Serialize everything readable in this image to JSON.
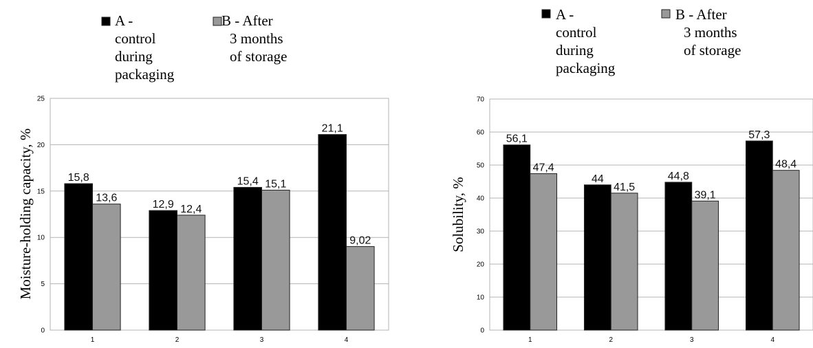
{
  "colors": {
    "series_a": "#000000",
    "series_b": "#999999",
    "grid": "#b3b3b3",
    "frame": "#b3b3b3"
  },
  "chart_data": [
    {
      "type": "bar",
      "categories": [
        "1",
        "2",
        "3",
        "4"
      ],
      "series": [
        {
          "name": "A - control during packaging",
          "legend_lines": [
            "A -",
            "control",
            "during",
            "packaging"
          ],
          "values": [
            15.8,
            12.9,
            15.4,
            21.1
          ],
          "labels": [
            "15,8",
            "12,9",
            "15,4",
            "21,1"
          ]
        },
        {
          "name": "B - After 3 months of storage",
          "legend_lines": [
            "B - After",
            "3 months",
            "of storage"
          ],
          "values": [
            13.6,
            12.4,
            15.1,
            9.02
          ],
          "labels": [
            "13,6",
            "12,4",
            "15,1",
            "9,02"
          ]
        }
      ],
      "xlabel": "",
      "ylabel": "Moisture-holding capacity, %",
      "ylim": [
        0,
        25
      ],
      "yticks": [
        0,
        5,
        10,
        15,
        20,
        25
      ],
      "grid": true,
      "legend": "top"
    },
    {
      "type": "bar",
      "categories": [
        "1",
        "2",
        "3",
        "4"
      ],
      "series": [
        {
          "name": "A - control during packaging",
          "legend_lines": [
            "A -",
            "control",
            "during",
            "packaging"
          ],
          "values": [
            56.1,
            44,
            44.8,
            57.3
          ],
          "labels": [
            "56,1",
            "44",
            "44,8",
            "57,3"
          ]
        },
        {
          "name": "B - After 3 months of storage",
          "legend_lines": [
            "B - After",
            "3 months",
            "of storage"
          ],
          "values": [
            47.4,
            41.5,
            39.1,
            48.4
          ],
          "labels": [
            "47,4",
            "41,5",
            "39,1",
            "48,4"
          ]
        }
      ],
      "xlabel": "",
      "ylabel": "Solubility, %",
      "ylim": [
        0,
        70
      ],
      "yticks": [
        0,
        10,
        20,
        30,
        40,
        50,
        60,
        70
      ],
      "grid": true,
      "legend": "top"
    }
  ]
}
